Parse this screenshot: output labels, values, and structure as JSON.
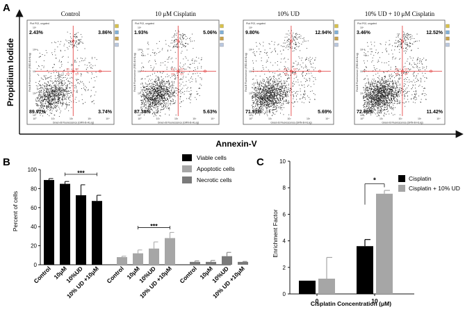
{
  "panel_letters": {
    "a": "A",
    "b": "B",
    "c": "C"
  },
  "panel_a": {
    "y_axis_label": "Propidium Iodide",
    "x_axis_label": "Annexin-V",
    "plot_header": "Plot P02, ungated",
    "inner_x_label": "Green-B Fluorescence (GRN-B-HLog)",
    "inner_y_label": "Red-B Fluorescence (RED-B-HLog)",
    "gate_labels": [
      "Q1",
      "Q2",
      "Q3",
      "Q4"
    ],
    "ticks_x": [
      "10⁰",
      "10¹",
      "10²",
      "10³",
      "10⁴"
    ],
    "ticks_y": [
      "10⁰",
      "10¹",
      "10²",
      "10³",
      "10⁴"
    ],
    "plots": [
      {
        "title": "Control",
        "ul": "2.43%",
        "ur": "3.86%",
        "ll": "89.97%",
        "lr": "3.74%"
      },
      {
        "title": "10 μM Cisplatin",
        "ul": "1.93%",
        "ur": "5.06%",
        "ll": "87.38%",
        "lr": "5.63%"
      },
      {
        "title": "10% UD",
        "ul": "9.80%",
        "ur": "12.94%",
        "ll": "71.57%",
        "lr": "5.69%"
      },
      {
        "title": "10% UD + 10 μM Cisplatin",
        "ul": "3.46%",
        "ur": "12.52%",
        "ll": "72.60%",
        "lr": "11.42%"
      }
    ]
  },
  "chart_data": [
    {
      "type": "bar",
      "panel": "B",
      "title": "",
      "ylabel": "Percent of cells",
      "xlabel": "",
      "ylim": [
        0,
        100
      ],
      "yticks": [
        "0",
        "20",
        "40",
        "60",
        "80",
        "100"
      ],
      "tick_labels": [
        "Control",
        "10μM",
        "10%UD",
        "10% UD +10μM",
        "Control",
        "10μM",
        "10%UD",
        "10% UD +10μM",
        "Control",
        "10μM",
        "10%UD",
        "10% UD +10μM"
      ],
      "categories": [
        "Control",
        "10μM",
        "10%UD",
        "10% UD +10μM"
      ],
      "legend": [
        "Viable cells",
        "Apoptotic cells",
        "Necrotic cells"
      ],
      "series": [
        {
          "name": "Viable cells",
          "color": "#000000",
          "values": [
            89,
            85,
            73,
            67
          ],
          "errors": [
            1.5,
            2.5,
            11,
            6
          ]
        },
        {
          "name": "Apoptotic cells",
          "color": "#a6a6a6",
          "values": [
            8,
            12,
            17,
            28
          ],
          "errors": [
            1,
            3.5,
            7,
            6
          ]
        },
        {
          "name": "Necrotic cells",
          "color": "#7a7a7a",
          "values": [
            3,
            3,
            9,
            3
          ],
          "errors": [
            1,
            1.5,
            4,
            0.5
          ]
        }
      ],
      "annotations": [
        {
          "text": "***",
          "group": "Viable cells",
          "from": 1,
          "to": 3
        },
        {
          "text": "***",
          "group": "Apoptotic cells",
          "from": 1,
          "to": 3
        }
      ]
    },
    {
      "type": "bar",
      "panel": "C",
      "title": "",
      "ylabel": "Enrichment Factor",
      "xlabel": "Cisplatin Concentration (μM)",
      "ylim": [
        0,
        10
      ],
      "yticks": [
        "0",
        "2",
        "4",
        "6",
        "8",
        "10"
      ],
      "categories": [
        "0",
        "10"
      ],
      "legend": [
        "Cisplatin",
        "Cisplatin + 10% UD"
      ],
      "series": [
        {
          "name": "Cisplatin",
          "color": "#000000",
          "values": [
            1.0,
            3.6
          ],
          "errors": [
            0,
            0.5
          ]
        },
        {
          "name": "Cisplatin + 10% UD",
          "color": "#a6a6a6",
          "values": [
            1.15,
            7.55
          ],
          "errors": [
            1.6,
            0.25
          ]
        }
      ],
      "annotations": [
        {
          "text": "*",
          "category": "10"
        }
      ]
    }
  ]
}
